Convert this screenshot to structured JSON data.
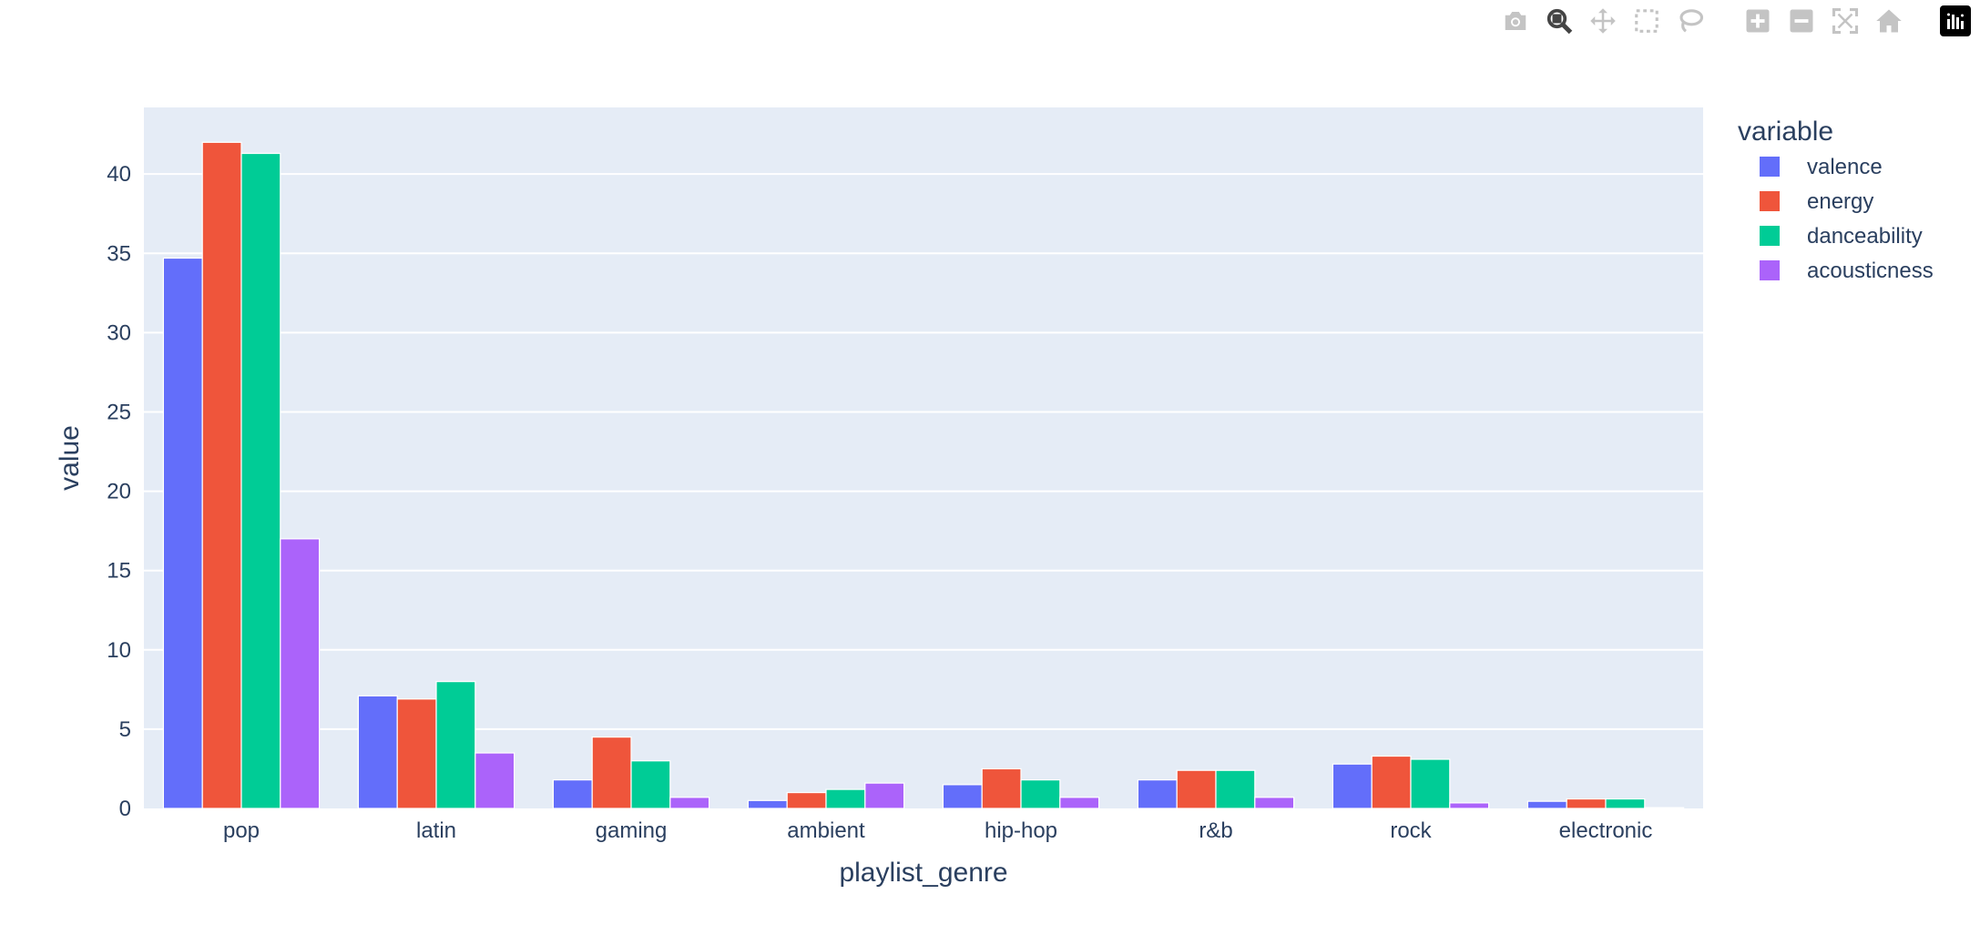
{
  "modebar": {
    "buttons": [
      "camera-icon",
      "zoom-icon",
      "pan-icon",
      "box-select-icon",
      "lasso-select-icon",
      "zoom-in-icon",
      "zoom-out-icon",
      "autoscale-icon",
      "reset-axes-icon",
      "plotly-logo-icon"
    ],
    "active": "zoom-icon",
    "icon_color": "#c4c4c4",
    "active_color": "#444444"
  },
  "chart_data": {
    "type": "bar",
    "barmode": "group",
    "categories": [
      "pop",
      "latin",
      "gaming",
      "ambient",
      "hip-hop",
      "r&b",
      "rock",
      "electronic"
    ],
    "series": [
      {
        "name": "valence",
        "color": "#636efa",
        "values": [
          34.7,
          7.1,
          1.8,
          0.5,
          1.5,
          1.8,
          2.8,
          0.45
        ]
      },
      {
        "name": "energy",
        "color": "#EF553B",
        "values": [
          42.0,
          6.9,
          4.5,
          1.0,
          2.5,
          2.4,
          3.3,
          0.6
        ]
      },
      {
        "name": "danceability",
        "color": "#00cc96",
        "values": [
          41.3,
          8.0,
          3.0,
          1.2,
          1.8,
          2.4,
          3.1,
          0.6
        ]
      },
      {
        "name": "acousticness",
        "color": "#ab63fa",
        "values": [
          17.0,
          3.5,
          0.7,
          1.6,
          0.7,
          0.7,
          0.35,
          0.05
        ]
      }
    ],
    "xlabel": "playlist_genre",
    "ylabel": "value",
    "ylim": [
      0,
      44.2
    ],
    "yticks": [
      0,
      5,
      10,
      15,
      20,
      25,
      30,
      35,
      40
    ],
    "legend_title": "variable",
    "legend_position": "top-right",
    "grid": true,
    "plot_bg": "#E5ECF6"
  }
}
